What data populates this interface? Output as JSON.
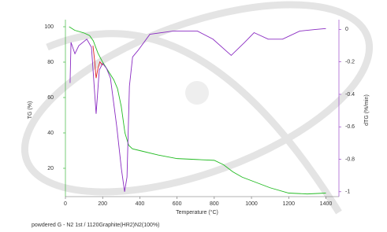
{
  "chart_data": {
    "type": "line",
    "y_label": "TG (%)",
    "y2_label": "dTG (%/min)",
    "x_label": "Temperature (°C)",
    "footnote": "powdered G - N2 1st / 1120Graphite(HR2)N2(100%)",
    "xlim": [
      0,
      1470
    ],
    "xticks": [
      0,
      200,
      400,
      600,
      800,
      1000,
      1200,
      1400
    ],
    "ylim": [
      4,
      104
    ],
    "yticks": [
      20,
      40,
      60,
      80,
      100
    ],
    "y2lim": [
      -1.03,
      0.06
    ],
    "y2ticks": [
      -1,
      -0.8,
      -0.6,
      -0.4,
      -0.2,
      0
    ],
    "y_color": "#22aa22",
    "y2_color": "#8a2bc2",
    "series": [
      {
        "color": "#22bb22",
        "axis": "y",
        "x": [
          20,
          50,
          100,
          130,
          150,
          175,
          200,
          230,
          260,
          280,
          300,
          320,
          340,
          360,
          400,
          500,
          600,
          700,
          800,
          850,
          900,
          950,
          1000,
          1100,
          1200,
          1300,
          1400
        ],
        "values": [
          100,
          98,
          96.5,
          95,
          92,
          85,
          80,
          75,
          70,
          65,
          55,
          40,
          33,
          31,
          30,
          27.5,
          25.5,
          25,
          24.5,
          22,
          18,
          15,
          13,
          9,
          6,
          5.5,
          6
        ]
      },
      {
        "color": "#8a2bc2",
        "axis": "y2",
        "x": [
          25,
          30,
          51,
          72,
          115,
          140,
          165,
          182,
          200,
          221,
          242,
          276,
          301,
          318,
          331,
          344,
          361,
          390,
          454,
          581,
          709,
          793,
          891,
          963,
          1014,
          1090,
          1167,
          1260,
          1345,
          1400
        ],
        "values": [
          -0.33,
          -0.08,
          -0.15,
          -0.1,
          -0.06,
          -0.11,
          -0.52,
          -0.25,
          -0.21,
          -0.24,
          -0.3,
          -0.6,
          -0.86,
          -1,
          -0.91,
          -0.35,
          -0.17,
          -0.13,
          -0.03,
          -0.01,
          -0.01,
          -0.06,
          -0.16,
          -0.08,
          -0.02,
          -0.06,
          -0.06,
          -0.01,
          0,
          0.005
        ]
      },
      {
        "color": "#dd2222",
        "axis": "y2",
        "x": [
          148,
          156,
          165,
          175,
          185,
          200
        ],
        "values": [
          -0.1,
          -0.18,
          -0.3,
          -0.24,
          -0.2,
          -0.22
        ]
      }
    ]
  }
}
